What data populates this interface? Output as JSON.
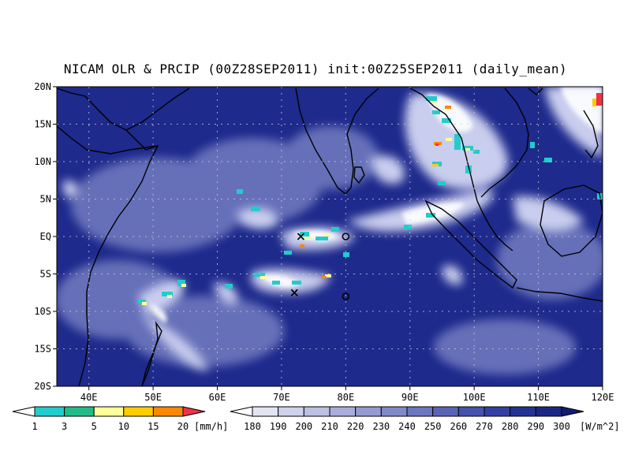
{
  "title": "NICAM OLR & PRCIP (00Z28SEP2011) init:00Z25SEP2011 (daily_mean)",
  "map": {
    "lon_range": [
      35,
      120
    ],
    "lat_range": [
      -20,
      20
    ],
    "ocean_color": "#1e2a8c",
    "cloud_color": "#ffffff",
    "coast_color": "#000000"
  },
  "lon_ticks": [
    {
      "value": 40,
      "label": "40E"
    },
    {
      "value": 50,
      "label": "50E"
    },
    {
      "value": 60,
      "label": "60E"
    },
    {
      "value": 70,
      "label": "70E"
    },
    {
      "value": 80,
      "label": "80E"
    },
    {
      "value": 90,
      "label": "90E"
    },
    {
      "value": 100,
      "label": "100E"
    },
    {
      "value": 110,
      "label": "110E"
    },
    {
      "value": 120,
      "label": "120E"
    }
  ],
  "lat_ticks": [
    {
      "value": 20,
      "label": "20N"
    },
    {
      "value": 15,
      "label": "15N"
    },
    {
      "value": 10,
      "label": "10N"
    },
    {
      "value": 5,
      "label": "5N"
    },
    {
      "value": 0,
      "label": "EQ"
    },
    {
      "value": -5,
      "label": "5S"
    },
    {
      "value": -10,
      "label": "10S"
    },
    {
      "value": -15,
      "label": "15S"
    },
    {
      "value": -20,
      "label": "20S"
    }
  ],
  "markers": [
    {
      "type": "cross",
      "lon": 73,
      "lat": 0
    },
    {
      "type": "circle",
      "lon": 80,
      "lat": 0
    },
    {
      "type": "cross",
      "lon": 72,
      "lat": -7.5
    },
    {
      "type": "circle",
      "lon": 80,
      "lat": -8
    }
  ],
  "precip_colorbar": {
    "unit": "[mm/h]",
    "labels": [
      "1",
      "3",
      "5",
      "10",
      "15",
      "20"
    ],
    "colors": [
      "#ffffff",
      "#22cccc",
      "#22bb88",
      "#ffff99",
      "#ffcc00",
      "#ff8800",
      "#ee3344"
    ]
  },
  "olr_colorbar": {
    "unit": "[W/m^2]",
    "labels": [
      "180",
      "190",
      "200",
      "210",
      "220",
      "230",
      "240",
      "250",
      "260",
      "270",
      "280",
      "290",
      "300"
    ],
    "colors": [
      "#ffffff",
      "#e2e4f2",
      "#cfd2ea",
      "#bcc0e2",
      "#a8addb",
      "#959bd2",
      "#8189c9",
      "#6d76c0",
      "#5a64b7",
      "#4652ad",
      "#3340a3",
      "#243294",
      "#1b2684",
      "#131a70"
    ]
  }
}
